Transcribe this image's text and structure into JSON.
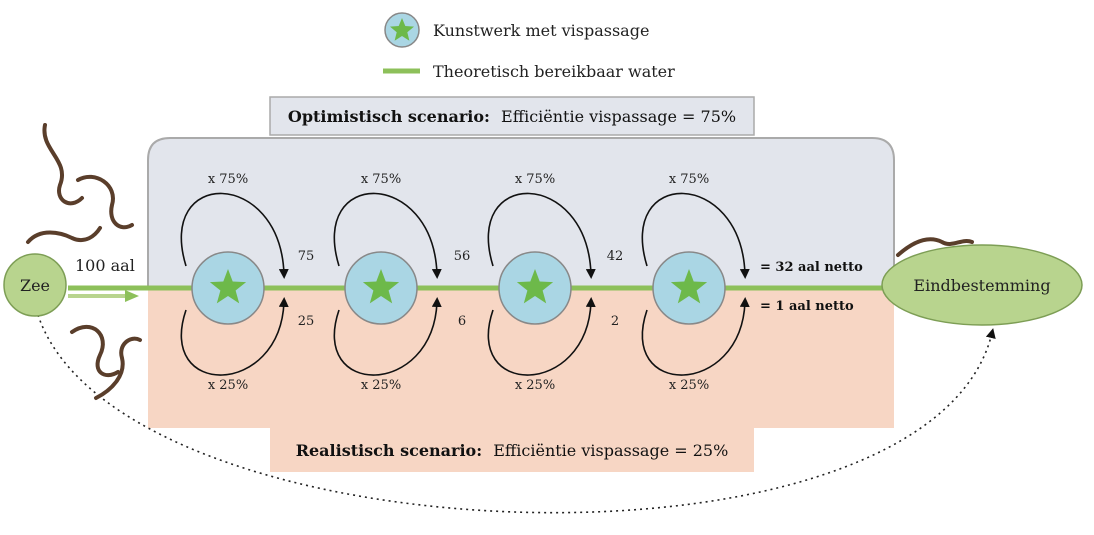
{
  "legend": {
    "structure_label": "Kunstwerk met vispassage",
    "water_label": "Theoretisch bereikbaar water"
  },
  "optimistic": {
    "title_bold": "Optimistisch scenario:",
    "title_rest": "Efficiëntie vispassage = 75%",
    "multipliers": [
      "x 75%",
      "x 75%",
      "x 75%",
      "x 75%"
    ],
    "values": [
      "75",
      "56",
      "42"
    ],
    "result": "= 32 aal netto"
  },
  "realistic": {
    "title_bold": "Realistisch scenario:",
    "title_rest": "Efficiëntie vispassage = 25%",
    "multipliers": [
      "x 25%",
      "x 25%",
      "x 25%",
      "x 25%"
    ],
    "values": [
      "25",
      "6",
      "2"
    ],
    "result": "= 1 aal netto"
  },
  "source": {
    "label": "Zee",
    "start_amount": "100 aal"
  },
  "destination": {
    "label": "Eindbestemming"
  },
  "colors": {
    "water": "#8dc05a",
    "structure_fill": "#aad6e4",
    "star": "#6db94a",
    "optimistic_bg": "#e2e5ec",
    "realistic_bg": "#f7d6c4",
    "node_fill": "#b8d48e"
  }
}
